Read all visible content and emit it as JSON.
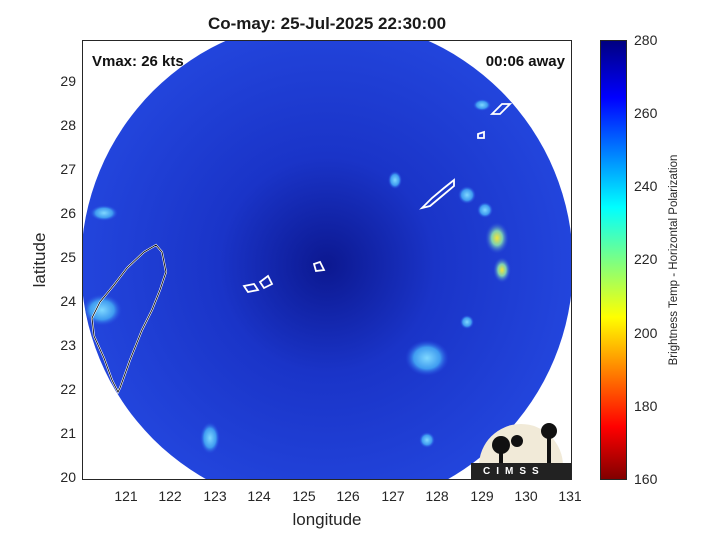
{
  "title": "Co-may: 25-Jul-2025 22:30:00",
  "vmax_label": "Vmax: 26 kts",
  "time_label": "00:06 away",
  "xlabel": "longitude",
  "ylabel": "latitude",
  "colorbar_label": "Brightness Temp - Horizontal Polarization",
  "logo_text": "CIMSS",
  "xticks": [
    "121",
    "122",
    "123",
    "124",
    "125",
    "126",
    "127",
    "128",
    "129",
    "130",
    "131"
  ],
  "yticks": [
    "20",
    "21",
    "22",
    "23",
    "24",
    "25",
    "26",
    "27",
    "28",
    "29"
  ],
  "cticks": [
    "280",
    "260",
    "240",
    "220",
    "200",
    "180",
    "160"
  ],
  "colors": {
    "field": "#1f3fd6",
    "field_dark": "#0f1fa0",
    "bright_spot": "#4fb8ff",
    "hot_spot": "#e8e020"
  },
  "chart_data": {
    "type": "heatmap",
    "xlim": [
      120,
      131
    ],
    "ylim": [
      20,
      30
    ],
    "clim": [
      160,
      280
    ],
    "colormap": "jet",
    "storm_center": {
      "lon": 125.2,
      "lat": 24.8
    },
    "swath": "circular",
    "grid": true
  }
}
